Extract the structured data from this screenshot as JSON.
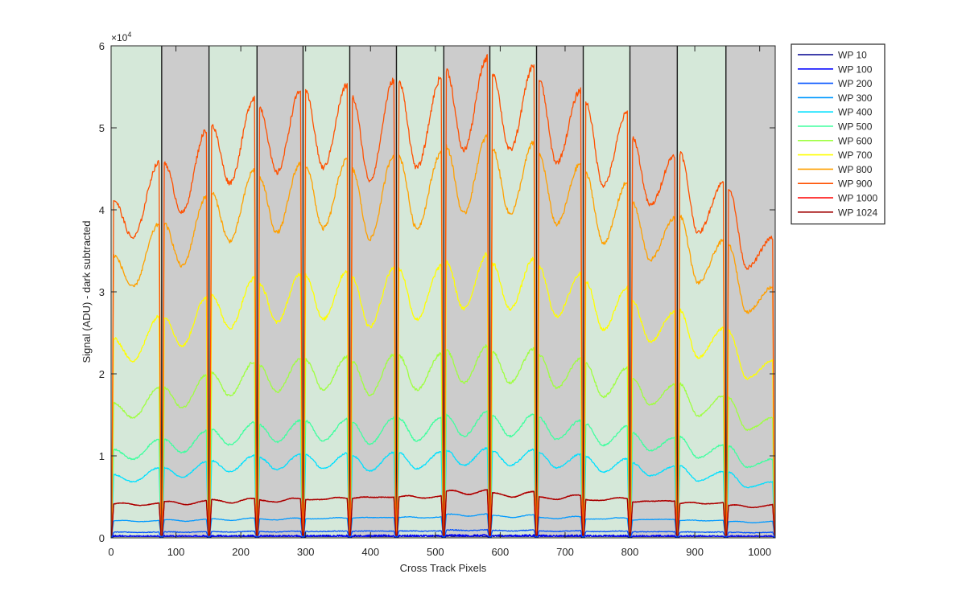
{
  "chart_data": {
    "type": "line",
    "title": "",
    "xlabel": "Cross Track Pixels",
    "ylabel": "Signal (ADU) - dark subtracted",
    "exponent_label": "×10",
    "exponent_power": "4",
    "xlim": [
      0,
      1024
    ],
    "ylim": [
      0,
      60000
    ],
    "x_ticks": [
      0,
      100,
      200,
      300,
      400,
      500,
      600,
      700,
      800,
      900,
      1000
    ],
    "y_ticks": [
      0,
      10000,
      20000,
      30000,
      40000,
      50000,
      60000
    ],
    "y_tick_labels": [
      "0",
      "1",
      "2",
      "3",
      "4",
      "5",
      "6"
    ],
    "legend_position": "outside-right-top",
    "background_bands": {
      "colors": {
        "green": "#d5e8d9",
        "gray": "#cccccc"
      },
      "bands": [
        {
          "start": 0,
          "end": 78,
          "color": "green"
        },
        {
          "start": 78,
          "end": 151,
          "color": "gray"
        },
        {
          "start": 151,
          "end": 225,
          "color": "green"
        },
        {
          "start": 225,
          "end": 296,
          "color": "gray"
        },
        {
          "start": 296,
          "end": 368,
          "color": "green"
        },
        {
          "start": 368,
          "end": 440,
          "color": "gray"
        },
        {
          "start": 440,
          "end": 513,
          "color": "green"
        },
        {
          "start": 513,
          "end": 584,
          "color": "gray"
        },
        {
          "start": 584,
          "end": 656,
          "color": "green"
        },
        {
          "start": 656,
          "end": 728,
          "color": "gray"
        },
        {
          "start": 728,
          "end": 800,
          "color": "green"
        },
        {
          "start": 800,
          "end": 873,
          "color": "gray"
        },
        {
          "start": 873,
          "end": 948,
          "color": "green"
        },
        {
          "start": 948,
          "end": 1024,
          "color": "gray"
        }
      ]
    },
    "segments": [
      {
        "start": 4,
        "end": 74
      },
      {
        "start": 82,
        "end": 147
      },
      {
        "start": 155,
        "end": 221
      },
      {
        "start": 229,
        "end": 292
      },
      {
        "start": 300,
        "end": 364
      },
      {
        "start": 372,
        "end": 436
      },
      {
        "start": 444,
        "end": 509
      },
      {
        "start": 517,
        "end": 580
      },
      {
        "start": 588,
        "end": 652
      },
      {
        "start": 660,
        "end": 724
      },
      {
        "start": 732,
        "end": 796
      },
      {
        "start": 804,
        "end": 869
      },
      {
        "start": 877,
        "end": 944
      },
      {
        "start": 952,
        "end": 1020
      }
    ],
    "gap_baseline": 300,
    "series": [
      {
        "name": "WP 10",
        "color": "#00008f",
        "ratio": 0.008,
        "shape": "flat",
        "noise": 0.12
      },
      {
        "name": "WP 100",
        "color": "#0000ff",
        "ratio": 0.03,
        "shape": "flat",
        "noise": 0.05
      },
      {
        "name": "WP 200",
        "color": "#0050ff",
        "ratio": 0.1,
        "shape": "flat",
        "noise": 0.02
      },
      {
        "name": "WP 300",
        "color": "#0099ff",
        "ratio": 0.3,
        "shape": "flat",
        "noise": 0.012
      },
      {
        "name": "WP 400",
        "color": "#00e0ff",
        "ratio": 0.57,
        "shape": "dip",
        "noise": 0.01
      },
      {
        "name": "WP 500",
        "color": "#40ff9f",
        "ratio": 0.8,
        "shape": "dip",
        "noise": 0.009
      },
      {
        "name": "WP 600",
        "color": "#9fff40",
        "ratio": 1.22,
        "shape": "dip",
        "noise": 0.008
      },
      {
        "name": "WP 700",
        "color": "#ffff00",
        "ratio": 1.8,
        "shape": "dip",
        "noise": 0.008
      },
      {
        "name": "WP 800",
        "color": "#ffa000",
        "ratio": 2.55,
        "shape": "dip",
        "noise": 0.007
      },
      {
        "name": "WP 900",
        "color": "#ff5000",
        "ratio": 3.05,
        "shape": "dip",
        "noise": 0.007
      },
      {
        "name": "WP 1000",
        "color": "#ff0000",
        "ratio": 0.6,
        "shape": "flat",
        "noise": 0.01
      },
      {
        "name": "WP 1024",
        "color": "#a00000",
        "ratio": 0.6,
        "shape": "flat",
        "noise": 0.008
      }
    ],
    "base_profile": {
      "segment_start_levels": [
        13500,
        15000,
        16500,
        17200,
        17800,
        17600,
        18200,
        18700,
        18600,
        18300,
        17400,
        16000,
        15400,
        14000
      ],
      "segment_min_levels": [
        12000,
        13000,
        14200,
        14600,
        14800,
        14300,
        14800,
        15500,
        15500,
        15000,
        14100,
        13300,
        12200,
        10800
      ],
      "segment_end_levels": [
        15000,
        16300,
        17600,
        17900,
        18100,
        18300,
        18400,
        19200,
        18900,
        17900,
        17000,
        15300,
        14200,
        12000
      ],
      "flat_levels": [
        7000,
        7300,
        7700,
        7800,
        8100,
        8400,
        8500,
        9500,
        9000,
        8400,
        8000,
        7600,
        7200,
        6600
      ]
    }
  }
}
